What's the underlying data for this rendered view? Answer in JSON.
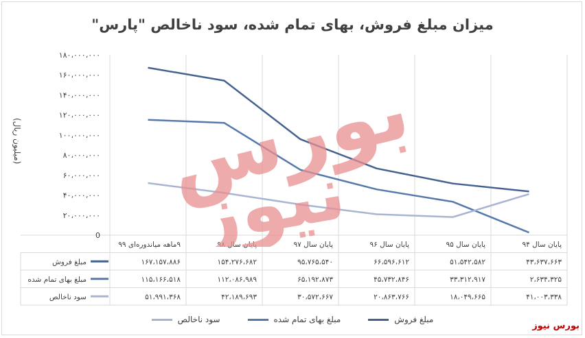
{
  "title": "میزان مبلغ فروش، بهای تمام شده، سود ناخالص \"پارس\"",
  "brand": "بورس نیوز",
  "watermark_text": "بورس نیوز",
  "chart_data": {
    "type": "line",
    "title": "میزان مبلغ فروش، بهای تمام شده، سود ناخالص \"پارس\"",
    "ylabel": "(میلیون ریال)",
    "xlabel": "",
    "ylim": [
      0,
      180000000
    ],
    "yticks": [
      0,
      20000000,
      40000000,
      60000000,
      80000000,
      100000000,
      120000000,
      140000000,
      160000000,
      180000000
    ],
    "ytick_labels": [
      "0",
      "۲۰،۰۰۰،۰۰۰",
      "۴۰،۰۰۰،۰۰۰",
      "۶۰،۰۰۰،۰۰۰",
      "۸۰،۰۰۰،۰۰۰",
      "۱۰۰،۰۰۰،۰۰۰",
      "۱۲۰،۰۰۰،۰۰۰",
      "۱۴۰،۰۰۰،۰۰۰",
      "۱۶۰،۰۰۰،۰۰۰",
      "۱۸۰،۰۰۰،۰۰۰"
    ],
    "grid": "vertical",
    "legend_position": "bottom",
    "categories": [
      "پایان سال ۹۴",
      "پایان سال ۹۵",
      "پایان سال ۹۶",
      "پایان سال ۹۷",
      "پایان سال ۹۸",
      "۹ماهه میاندوره‌ای ۹۹"
    ],
    "series": [
      {
        "name": "مبلغ فروش",
        "color": "#44618f",
        "values": [
          43637663,
          51542582,
          66596612,
          95765540,
          154276682,
          167157886
        ],
        "labels": [
          "۴۳،۶۳۷،۶۶۳",
          "۵۱،۵۴۲،۵۸۲",
          "۶۶،۵۹۶،۶۱۲",
          "۹۵،۷۶۵،۵۴۰",
          "۱۵۴،۲۷۶،۶۸۲",
          "۱۶۷،۱۵۷،۸۸۶"
        ]
      },
      {
        "name": "مبلغ بهای تمام شده",
        "color": "#5679ab",
        "values": [
          2634325,
          33312917,
          45732846,
          65192873,
          112086989,
          115166518
        ],
        "labels": [
          "۲،۶۳۴،۳۲۵",
          "۳۳،۳۱۲،۹۱۷",
          "۴۵،۷۳۲،۸۴۶",
          "۶۵،۱۹۲،۸۷۳",
          "۱۱۲،۰۸۶،۹۸۹",
          "۱۱۵،۱۶۶،۵۱۸"
        ]
      },
      {
        "name": "سود ناخالص",
        "color": "#a7b5d3",
        "values": [
          41003338,
          18049665,
          20863766,
          30572667,
          42189693,
          51991368
        ],
        "labels": [
          "۴۱،۰۰۳،۳۳۸",
          "۱۸،۰۴۹،۶۶۵",
          "۲۰،۸۶۳،۷۶۶",
          "۳۰،۵۷۲،۶۶۷",
          "۴۲،۱۸۹،۶۹۳",
          "۵۱،۹۹۱،۳۶۸"
        ]
      }
    ]
  }
}
